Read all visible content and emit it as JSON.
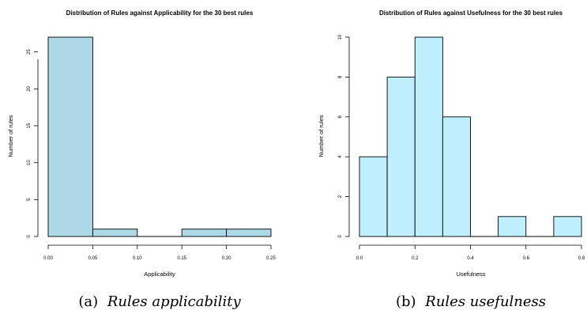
{
  "chart_data": [
    {
      "type": "histogram",
      "title": "Distribution of Rules against Applicability for the 30 best rules",
      "xlabel": "Applicability",
      "ylabel": "Number of rules",
      "bins": [
        [
          0.0,
          0.05
        ],
        [
          0.05,
          0.1
        ],
        [
          0.1,
          0.15
        ],
        [
          0.15,
          0.2
        ],
        [
          0.2,
          0.25
        ]
      ],
      "values": [
        27,
        1,
        0,
        1,
        1
      ],
      "xlim": [
        0.0,
        0.25
      ],
      "ylim": [
        0,
        27
      ],
      "xticks": [
        "0.00",
        "0.05",
        "0.10",
        "0.15",
        "0.20",
        "0.25"
      ],
      "xtick_values": [
        0.0,
        0.05,
        0.1,
        0.15,
        0.2,
        0.25
      ],
      "yticks": [
        "0",
        "5",
        "10",
        "15",
        "20",
        "25"
      ],
      "ytick_values": [
        0,
        5,
        10,
        15,
        20,
        25
      ],
      "bar_color": "#add8e6",
      "grid": false,
      "caption": {
        "prefix": "(a)",
        "text": "Rules applicability"
      }
    },
    {
      "type": "histogram",
      "title": "Distribution of Rules against Usefulness for the 30 best rules",
      "xlabel": "Usefulness",
      "ylabel": "Number of rules",
      "bins": [
        [
          0.0,
          0.1
        ],
        [
          0.1,
          0.2
        ],
        [
          0.2,
          0.3
        ],
        [
          0.3,
          0.4
        ],
        [
          0.4,
          0.5
        ],
        [
          0.5,
          0.6
        ],
        [
          0.6,
          0.7
        ],
        [
          0.7,
          0.8
        ]
      ],
      "values": [
        4,
        8,
        10,
        6,
        0,
        1,
        0,
        1
      ],
      "xlim": [
        0.0,
        0.8
      ],
      "ylim": [
        0,
        10
      ],
      "xticks": [
        "0.0",
        "0.2",
        "0.4",
        "0.6",
        "0.8"
      ],
      "xtick_values": [
        0.0,
        0.2,
        0.4,
        0.6,
        0.8
      ],
      "yticks": [
        "0",
        "2",
        "4",
        "6",
        "8",
        "10"
      ],
      "ytick_values": [
        0,
        2,
        4,
        6,
        8,
        10
      ],
      "bar_color": "#bfefff",
      "grid": false,
      "caption": {
        "prefix": "(b)",
        "text": "Rules usefulness"
      }
    }
  ]
}
